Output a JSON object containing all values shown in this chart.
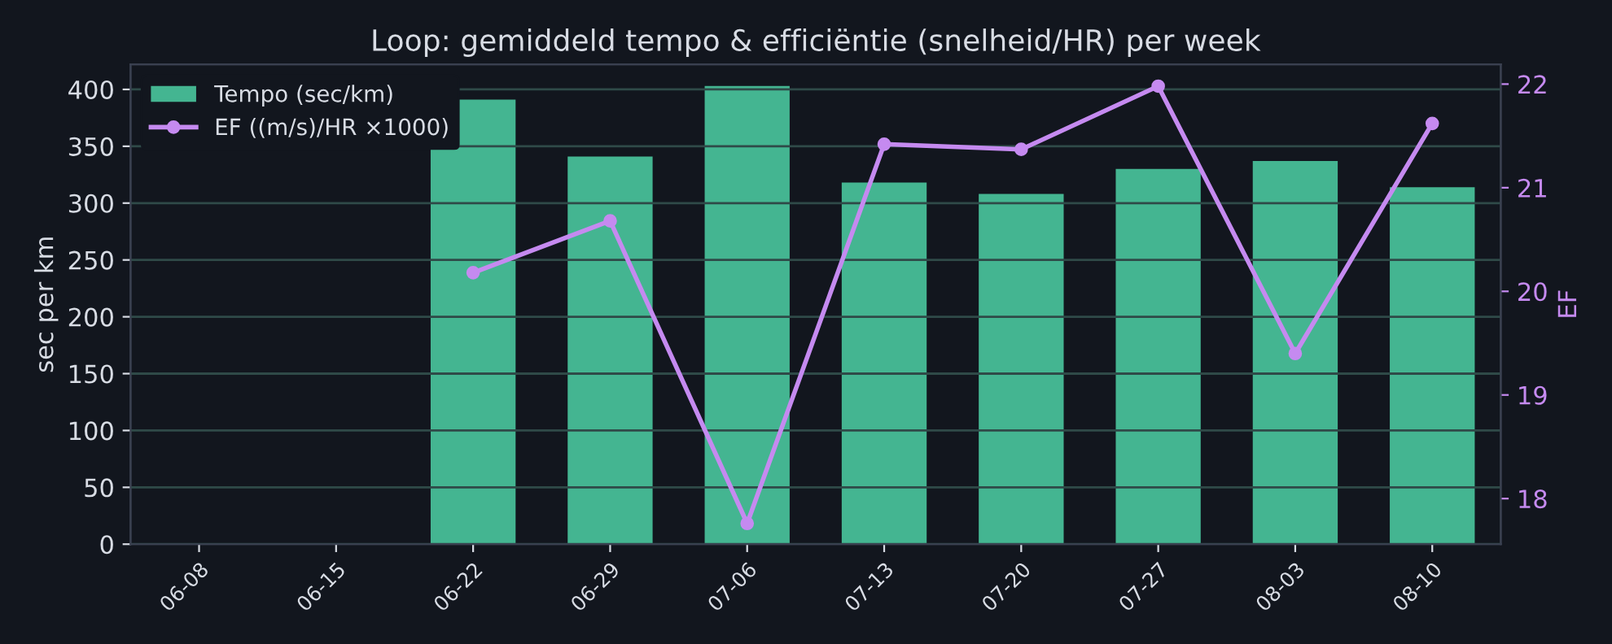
{
  "chart_data": {
    "type": "bar",
    "title": "Loop: gemiddeld tempo & efficiëntie (snelheid/HR) per week",
    "categories": [
      "06-08",
      "06-15",
      "06-22",
      "06-29",
      "07-06",
      "07-13",
      "07-20",
      "07-27",
      "08-03",
      "08-10"
    ],
    "series": [
      {
        "name": "Tempo (sec/km)",
        "color": "#44b591",
        "values": [
          null,
          null,
          391,
          341,
          403,
          318,
          308,
          330,
          337,
          314
        ]
      },
      {
        "name": "EF ((m/s)/HR ×1000)",
        "type": "line",
        "axis": "y2",
        "color": "#c58af0",
        "marker": "circle",
        "values": [
          null,
          null,
          20.18,
          20.68,
          17.76,
          21.42,
          21.37,
          21.98,
          19.4,
          21.62
        ]
      }
    ],
    "ylabel": "sec per km",
    "y2label": "EF",
    "ylim": [
      0,
      422
    ],
    "yticks": [
      0,
      50,
      100,
      150,
      200,
      250,
      300,
      350,
      400
    ],
    "y2lim": [
      17.56,
      22.19
    ],
    "y2ticks": [
      18,
      19,
      20,
      21,
      22
    ],
    "grid": "y",
    "legend": "top left"
  }
}
